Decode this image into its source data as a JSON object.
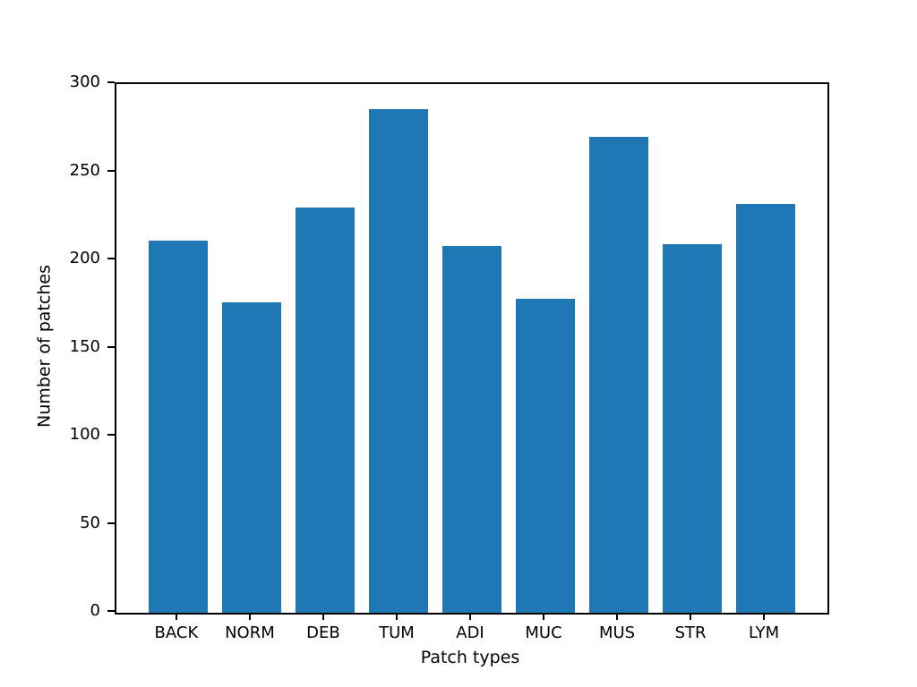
{
  "figure": {
    "background_color": "#ffffff",
    "text_color": "#000000",
    "spine_color": "#000000"
  },
  "chart_data": {
    "type": "bar",
    "title": "",
    "xlabel": "Patch types",
    "ylabel": "Number of patches",
    "categories": [
      "BACK",
      "NORM",
      "DEB",
      "TUM",
      "ADI",
      "MUC",
      "MUS",
      "STR",
      "LYM"
    ],
    "values": [
      211,
      176,
      230,
      286,
      208,
      178,
      270,
      209,
      232
    ],
    "ylim": [
      0,
      300
    ],
    "yticks": [
      0,
      50,
      100,
      150,
      200,
      250,
      300
    ],
    "bar_color": "#1f77b4",
    "bar_width_fraction": 0.8,
    "grid": false,
    "legend_position": "none"
  }
}
